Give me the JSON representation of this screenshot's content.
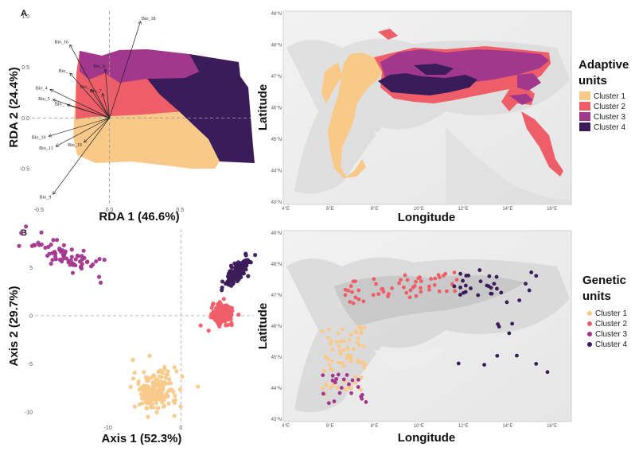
{
  "colors": {
    "cluster1": "#F9C98A",
    "cluster2": "#EE5E68",
    "cluster3": "#A2378E",
    "cluster4": "#3B1C5A"
  },
  "panels": {
    "a": "A",
    "b": "B"
  },
  "chart_data": [
    {
      "id": "rda",
      "type": "scatter",
      "xlabel": "RDA 1 (46.6%)",
      "ylabel": "RDA 2 (24.4%)",
      "xlim": [
        -0.55,
        1.0
      ],
      "ylim": [
        -0.85,
        1.05
      ],
      "xticks": [
        {
          "v": -0.5,
          "label": "-0.5"
        },
        {
          "v": 0.0,
          "label": "0.0"
        },
        {
          "v": 0.5,
          "label": "0.5"
        }
      ],
      "yticks": [
        {
          "v": 1.0,
          "label": "1.0"
        },
        {
          "v": 0.5,
          "label": "0.5"
        },
        {
          "v": 0.0,
          "label": "0.0"
        },
        {
          "v": -0.5,
          "label": "-0.5"
        }
      ],
      "arrows": [
        {
          "label": "Bio_18",
          "x": 0.22,
          "y": 0.95
        },
        {
          "label": "Bio_16",
          "x": -0.28,
          "y": 0.72
        },
        {
          "label": "Bio_8",
          "x": -0.03,
          "y": 0.48
        },
        {
          "label": "Bio_",
          "x": -0.28,
          "y": 0.44
        },
        {
          "label": "Bio_4",
          "x": -0.42,
          "y": 0.28
        },
        {
          "label": "Bio_5",
          "x": -0.4,
          "y": 0.18
        },
        {
          "label": "Bio_",
          "x": -0.3,
          "y": 0.13
        },
        {
          "label": "Bio_7",
          "x": -0.05,
          "y": 0.24
        },
        {
          "label": "Bio_",
          "x": -0.13,
          "y": 0.28
        },
        {
          "label": "Bio_10",
          "x": -0.43,
          "y": -0.18
        },
        {
          "label": "Bio_11",
          "x": -0.38,
          "y": -0.28
        },
        {
          "label": "Bio_19",
          "x": -0.18,
          "y": -0.24
        },
        {
          "label": "Bio_9",
          "x": -0.4,
          "y": -0.75
        }
      ]
    },
    {
      "id": "pca",
      "type": "scatter",
      "xlabel": "Axis 1 (52.3%)",
      "ylabel": "Axis 2 (29.7%)",
      "xlim": [
        -20,
        10
      ],
      "ylim": [
        -11,
        9
      ],
      "xticks": [
        {
          "v": -10,
          "label": "-10"
        },
        {
          "v": 0,
          "label": "0"
        }
      ],
      "yticks": [
        {
          "v": 5,
          "label": "5"
        },
        {
          "v": 0,
          "label": "0"
        },
        {
          "v": -5,
          "label": "-5"
        },
        {
          "v": -10,
          "label": "-10"
        }
      ],
      "series": [
        {
          "name": "Cluster 1",
          "center": [
            -3.5,
            -7.8
          ],
          "spread": [
            1.5,
            1.1
          ],
          "n": 190
        },
        {
          "name": "Cluster 2",
          "center": [
            5.7,
            0.2
          ],
          "spread": [
            0.7,
            0.5
          ],
          "n": 150
        },
        {
          "name": "Cluster 3",
          "center": [
            -15.5,
            6.0
          ],
          "spread": [
            2.8,
            0.9
          ],
          "n": 70
        },
        {
          "name": "Cluster 4",
          "center": [
            7.8,
            4.6
          ],
          "spread": [
            0.9,
            0.7
          ],
          "n": 160
        }
      ]
    }
  ],
  "maps": {
    "xlabel": "Longitude",
    "ylabel": "Latitude",
    "lon_ticks": [
      "4°E",
      "6°E",
      "8°E",
      "10°E",
      "12°E",
      "14°E",
      "16°E"
    ],
    "lat_ticks": [
      "49°N",
      "48°N",
      "47°N",
      "46°N",
      "45°N",
      "44°N",
      "43°N"
    ],
    "top_legend": {
      "title_line1": "Adaptive",
      "title_line2": "units",
      "items": [
        "Cluster 1",
        "Cluster 2",
        "Cluster 3",
        "Cluster 4"
      ]
    },
    "bottom_legend": {
      "title_line1": "Genetic",
      "title_line2": "units",
      "items": [
        "Cluster 1",
        "Cluster 2",
        "Cluster 3",
        "Cluster 4"
      ]
    }
  }
}
